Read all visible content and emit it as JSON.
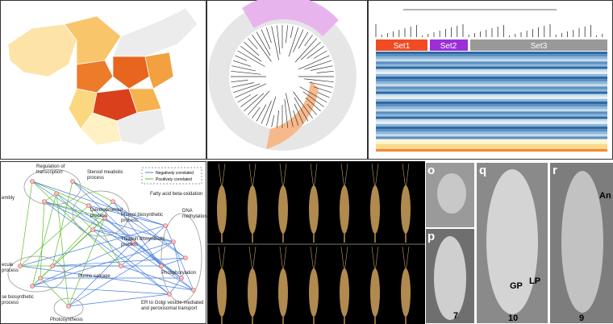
{
  "heatmap": {
    "sets": [
      "Set1",
      "Set2",
      "Set3"
    ]
  },
  "network": {
    "legend": [
      "Negatively correlated",
      "Positively correlated"
    ],
    "labels": [
      [
        "Regulation of",
        "transcription"
      ],
      [
        "Steroid meabolic",
        "process"
      ],
      [
        "Developmental",
        "process"
      ],
      [
        "Fatty acid beta-oxidation"
      ],
      [
        "Phenol biosynthetic",
        "process"
      ],
      [
        "DNA",
        "methylation"
      ],
      [
        "Thiamin biosynthetic",
        "process"
      ],
      [
        "Purine salvage"
      ],
      [
        "Phosphorylation"
      ],
      [
        "ER to Golgi vesicle-mediated",
        "and peroxisomal transport"
      ],
      [
        "Photosynthesis"
      ],
      [
        "embly"
      ],
      [
        "ecule",
        "process"
      ],
      [
        "se biosynthetic",
        "process"
      ]
    ]
  },
  "sem": {
    "panels": [
      "o",
      "p",
      "q",
      "r"
    ],
    "stages": [
      "7",
      "10",
      "9"
    ],
    "arrows": [
      "GP",
      "LP",
      "An"
    ]
  }
}
